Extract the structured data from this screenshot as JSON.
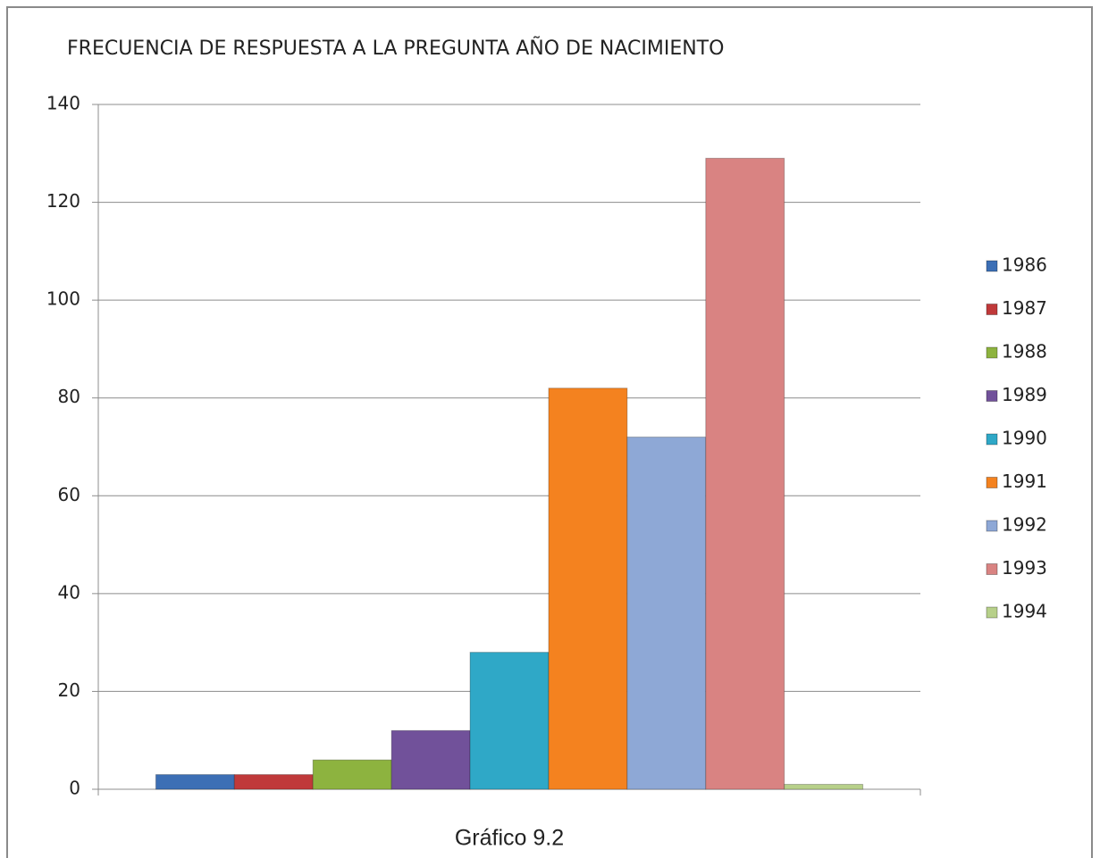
{
  "chart_data": {
    "type": "bar",
    "title": "FRECUENCIA DE RESPUESTA A LA PREGUNTA AÑO DE NACIMIENTO",
    "caption": "Gráfico 9.2",
    "categories": [
      null
    ],
    "series": [
      {
        "name": "1986",
        "color": "#3c6fb5",
        "values": [
          3
        ]
      },
      {
        "name": "1987",
        "color": "#c0393a",
        "values": [
          3
        ]
      },
      {
        "name": "1988",
        "color": "#8db33f",
        "values": [
          6
        ]
      },
      {
        "name": "1989",
        "color": "#71519a",
        "values": [
          12
        ]
      },
      {
        "name": "1990",
        "color": "#2fa8c7",
        "values": [
          28
        ]
      },
      {
        "name": "1991",
        "color": "#f4821f",
        "values": [
          82
        ]
      },
      {
        "name": "1992",
        "color": "#8ea8d6",
        "values": [
          72
        ]
      },
      {
        "name": "1993",
        "color": "#d98382",
        "values": [
          129
        ]
      },
      {
        "name": "1994",
        "color": "#b7d08a",
        "values": [
          1
        ]
      }
    ],
    "ylim": [
      0,
      140
    ],
    "yticks": [
      0,
      20,
      40,
      60,
      80,
      100,
      120,
      140
    ],
    "grid": true,
    "legend": "right"
  }
}
